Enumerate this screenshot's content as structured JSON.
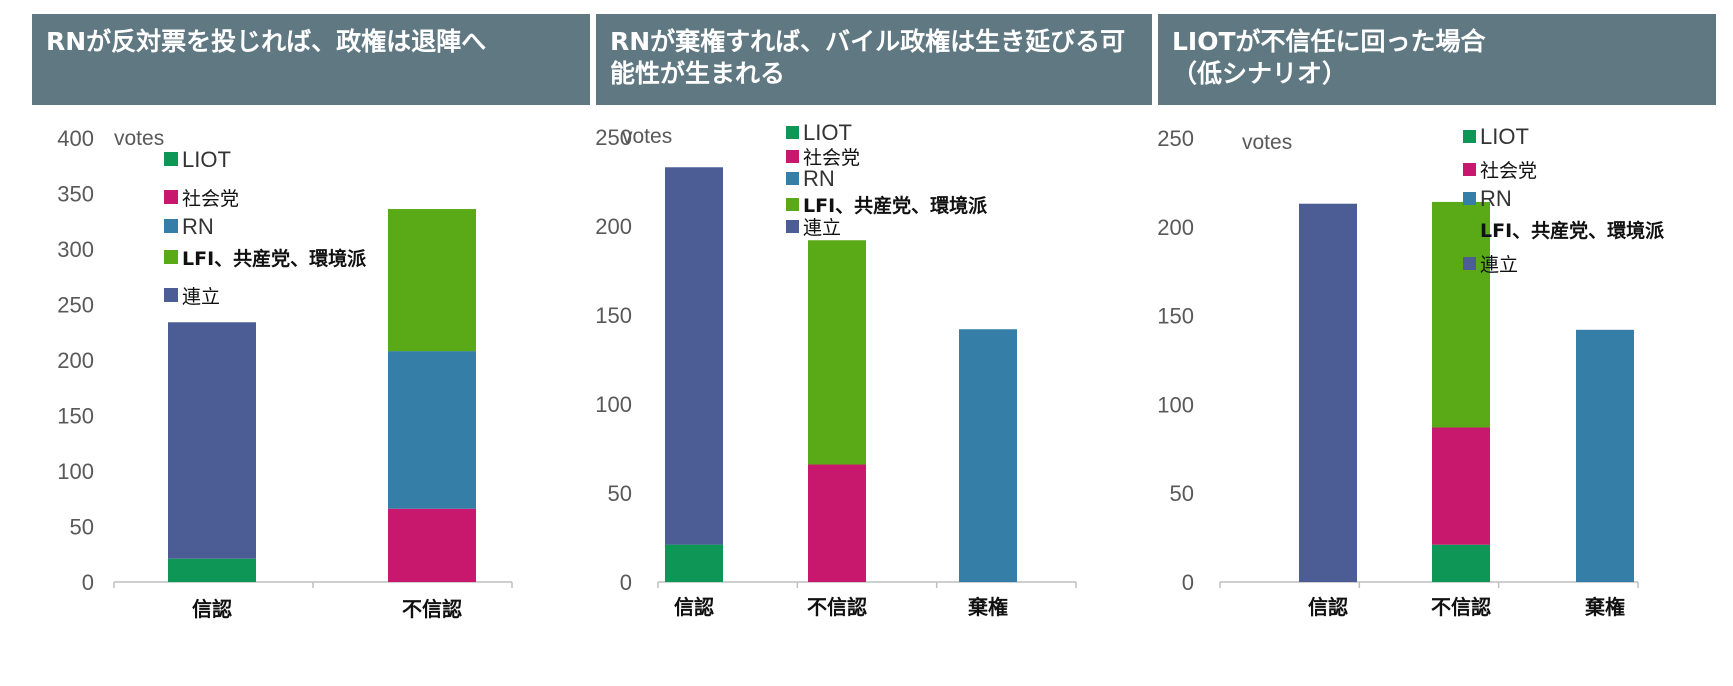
{
  "colors": {
    "header_bg": "#5f7882",
    "LIOT": "#0e9657",
    "社会党": "#c8186e",
    "RN": "#347ea8",
    "LFI、共産党、環境派": "#5aaa17",
    "連立": "#4b5d94"
  },
  "chart_data": [
    {
      "type": "bar",
      "stacked": true,
      "title": "RNが反対票を投じれば、政権は退陣へ",
      "ylabel": "votes",
      "ylim": [
        0,
        400
      ],
      "yticks": [
        0,
        50,
        100,
        150,
        200,
        250,
        300,
        350,
        400
      ],
      "categories": [
        "信認",
        "不信認"
      ],
      "legend": [
        "LIOT",
        "社会党",
        "RN",
        "LFI、共産党、環境派",
        "連立"
      ],
      "series": [
        {
          "name": "LIOT",
          "values": [
            21,
            0
          ]
        },
        {
          "name": "社会党",
          "values": [
            0,
            66
          ]
        },
        {
          "name": "RN",
          "values": [
            0,
            142
          ]
        },
        {
          "name": "LFI、共産党、環境派",
          "values": [
            0,
            128
          ]
        },
        {
          "name": "連立",
          "values": [
            213,
            0
          ]
        }
      ]
    },
    {
      "type": "bar",
      "stacked": true,
      "title": "RNが棄権すれば、バイル政権は生き延びる可能性が生まれる",
      "ylabel": "votes",
      "ylim": [
        0,
        250
      ],
      "yticks": [
        0,
        50,
        100,
        150,
        200,
        250
      ],
      "categories": [
        "信認",
        "不信認",
        "棄権"
      ],
      "legend": [
        "LIOT",
        "社会党",
        "RN",
        "LFI、共産党、環境派",
        "連立"
      ],
      "series": [
        {
          "name": "LIOT",
          "values": [
            21,
            0,
            0
          ]
        },
        {
          "name": "社会党",
          "values": [
            0,
            66,
            0
          ]
        },
        {
          "name": "RN",
          "values": [
            0,
            0,
            142
          ]
        },
        {
          "name": "LFI、共産党、環境派",
          "values": [
            0,
            126,
            0
          ]
        },
        {
          "name": "連立",
          "values": [
            212,
            0,
            0
          ]
        }
      ]
    },
    {
      "type": "bar",
      "stacked": true,
      "title": "LIOTが不信任に回った場合\n（低シナリオ）",
      "ylabel": "votes",
      "ylim": [
        0,
        250
      ],
      "yticks": [
        0,
        50,
        100,
        150,
        200,
        250
      ],
      "categories": [
        "信認",
        "不信認",
        "棄権"
      ],
      "legend": [
        "LIOT",
        "社会党",
        "RN",
        "LFI、共産党、環境派",
        "連立"
      ],
      "series": [
        {
          "name": "LIOT",
          "values": [
            0,
            21,
            0
          ]
        },
        {
          "name": "社会党",
          "values": [
            0,
            66,
            0
          ]
        },
        {
          "name": "RN",
          "values": [
            0,
            0,
            142
          ]
        },
        {
          "name": "LFI、共産党、環境派",
          "values": [
            0,
            127,
            0
          ]
        },
        {
          "name": "連立",
          "values": [
            213,
            0,
            0
          ]
        }
      ]
    }
  ]
}
